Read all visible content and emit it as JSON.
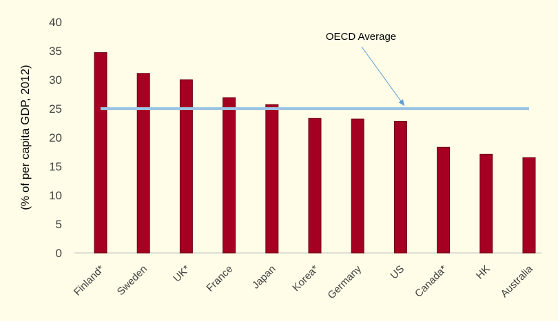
{
  "colors": {
    "background": "#FFFDE7",
    "bar": "#A50021",
    "bar_outline": "#6B0016",
    "average_line": "#9DC3E6",
    "arrow": "#5B9BD5",
    "axis": "#BFBFBF",
    "text": "#404040"
  },
  "chart_data": {
    "type": "bar",
    "title": "",
    "xlabel": "",
    "ylabel": "(% of per capita GDP, 2012)",
    "ylim": [
      0,
      40
    ],
    "yticks": [
      0,
      5,
      10,
      15,
      20,
      25,
      30,
      35,
      40
    ],
    "grid": false,
    "categories": [
      "Finland*",
      "Sweden",
      "UK*",
      "France",
      "Japan",
      "Korea*",
      "Germany",
      "US",
      "Canada*",
      "HK",
      "Australia"
    ],
    "values": [
      34.7,
      31.1,
      30.0,
      26.9,
      25.7,
      23.3,
      23.2,
      22.8,
      18.3,
      17.1,
      16.5
    ],
    "reference_line": {
      "label": "OECD Average",
      "value": 25
    }
  }
}
